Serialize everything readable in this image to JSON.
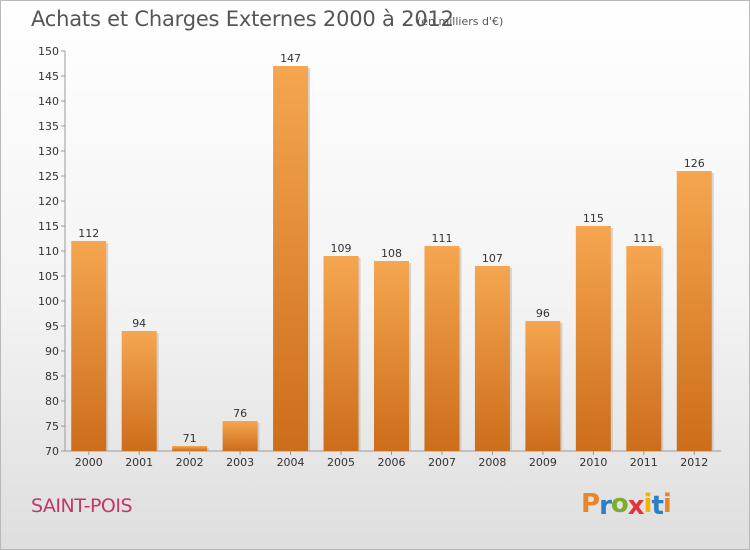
{
  "title": "Achats et Charges Externes 2000 à 2012",
  "subtitle": "(en milliers d'€)",
  "commune": "SAINT-POIS",
  "brand": {
    "letters": [
      "P",
      "r",
      "o",
      "x",
      "i",
      "t",
      "i"
    ],
    "colors": [
      "#e8872a",
      "#2c7fc4",
      "#7aae2b",
      "#e8323c",
      "#f0b400",
      "#2c7fc4",
      "#e8872a"
    ]
  },
  "colors": {
    "bar_top": "#f6a650",
    "bar_bottom": "#cc6d1a",
    "title": "#555555",
    "commune": "#c2376a"
  },
  "chart_data": {
    "type": "bar",
    "categories": [
      "2000",
      "2001",
      "2002",
      "2003",
      "2004",
      "2005",
      "2006",
      "2007",
      "2008",
      "2009",
      "2010",
      "2011",
      "2012"
    ],
    "values": [
      112,
      94,
      71,
      76,
      147,
      109,
      108,
      111,
      107,
      96,
      115,
      111,
      126
    ],
    "ylim": [
      70,
      150
    ],
    "yticks": [
      70,
      75,
      80,
      85,
      90,
      95,
      100,
      105,
      110,
      115,
      120,
      125,
      130,
      135,
      140,
      145,
      150
    ],
    "grid": false,
    "data_labels": true
  }
}
